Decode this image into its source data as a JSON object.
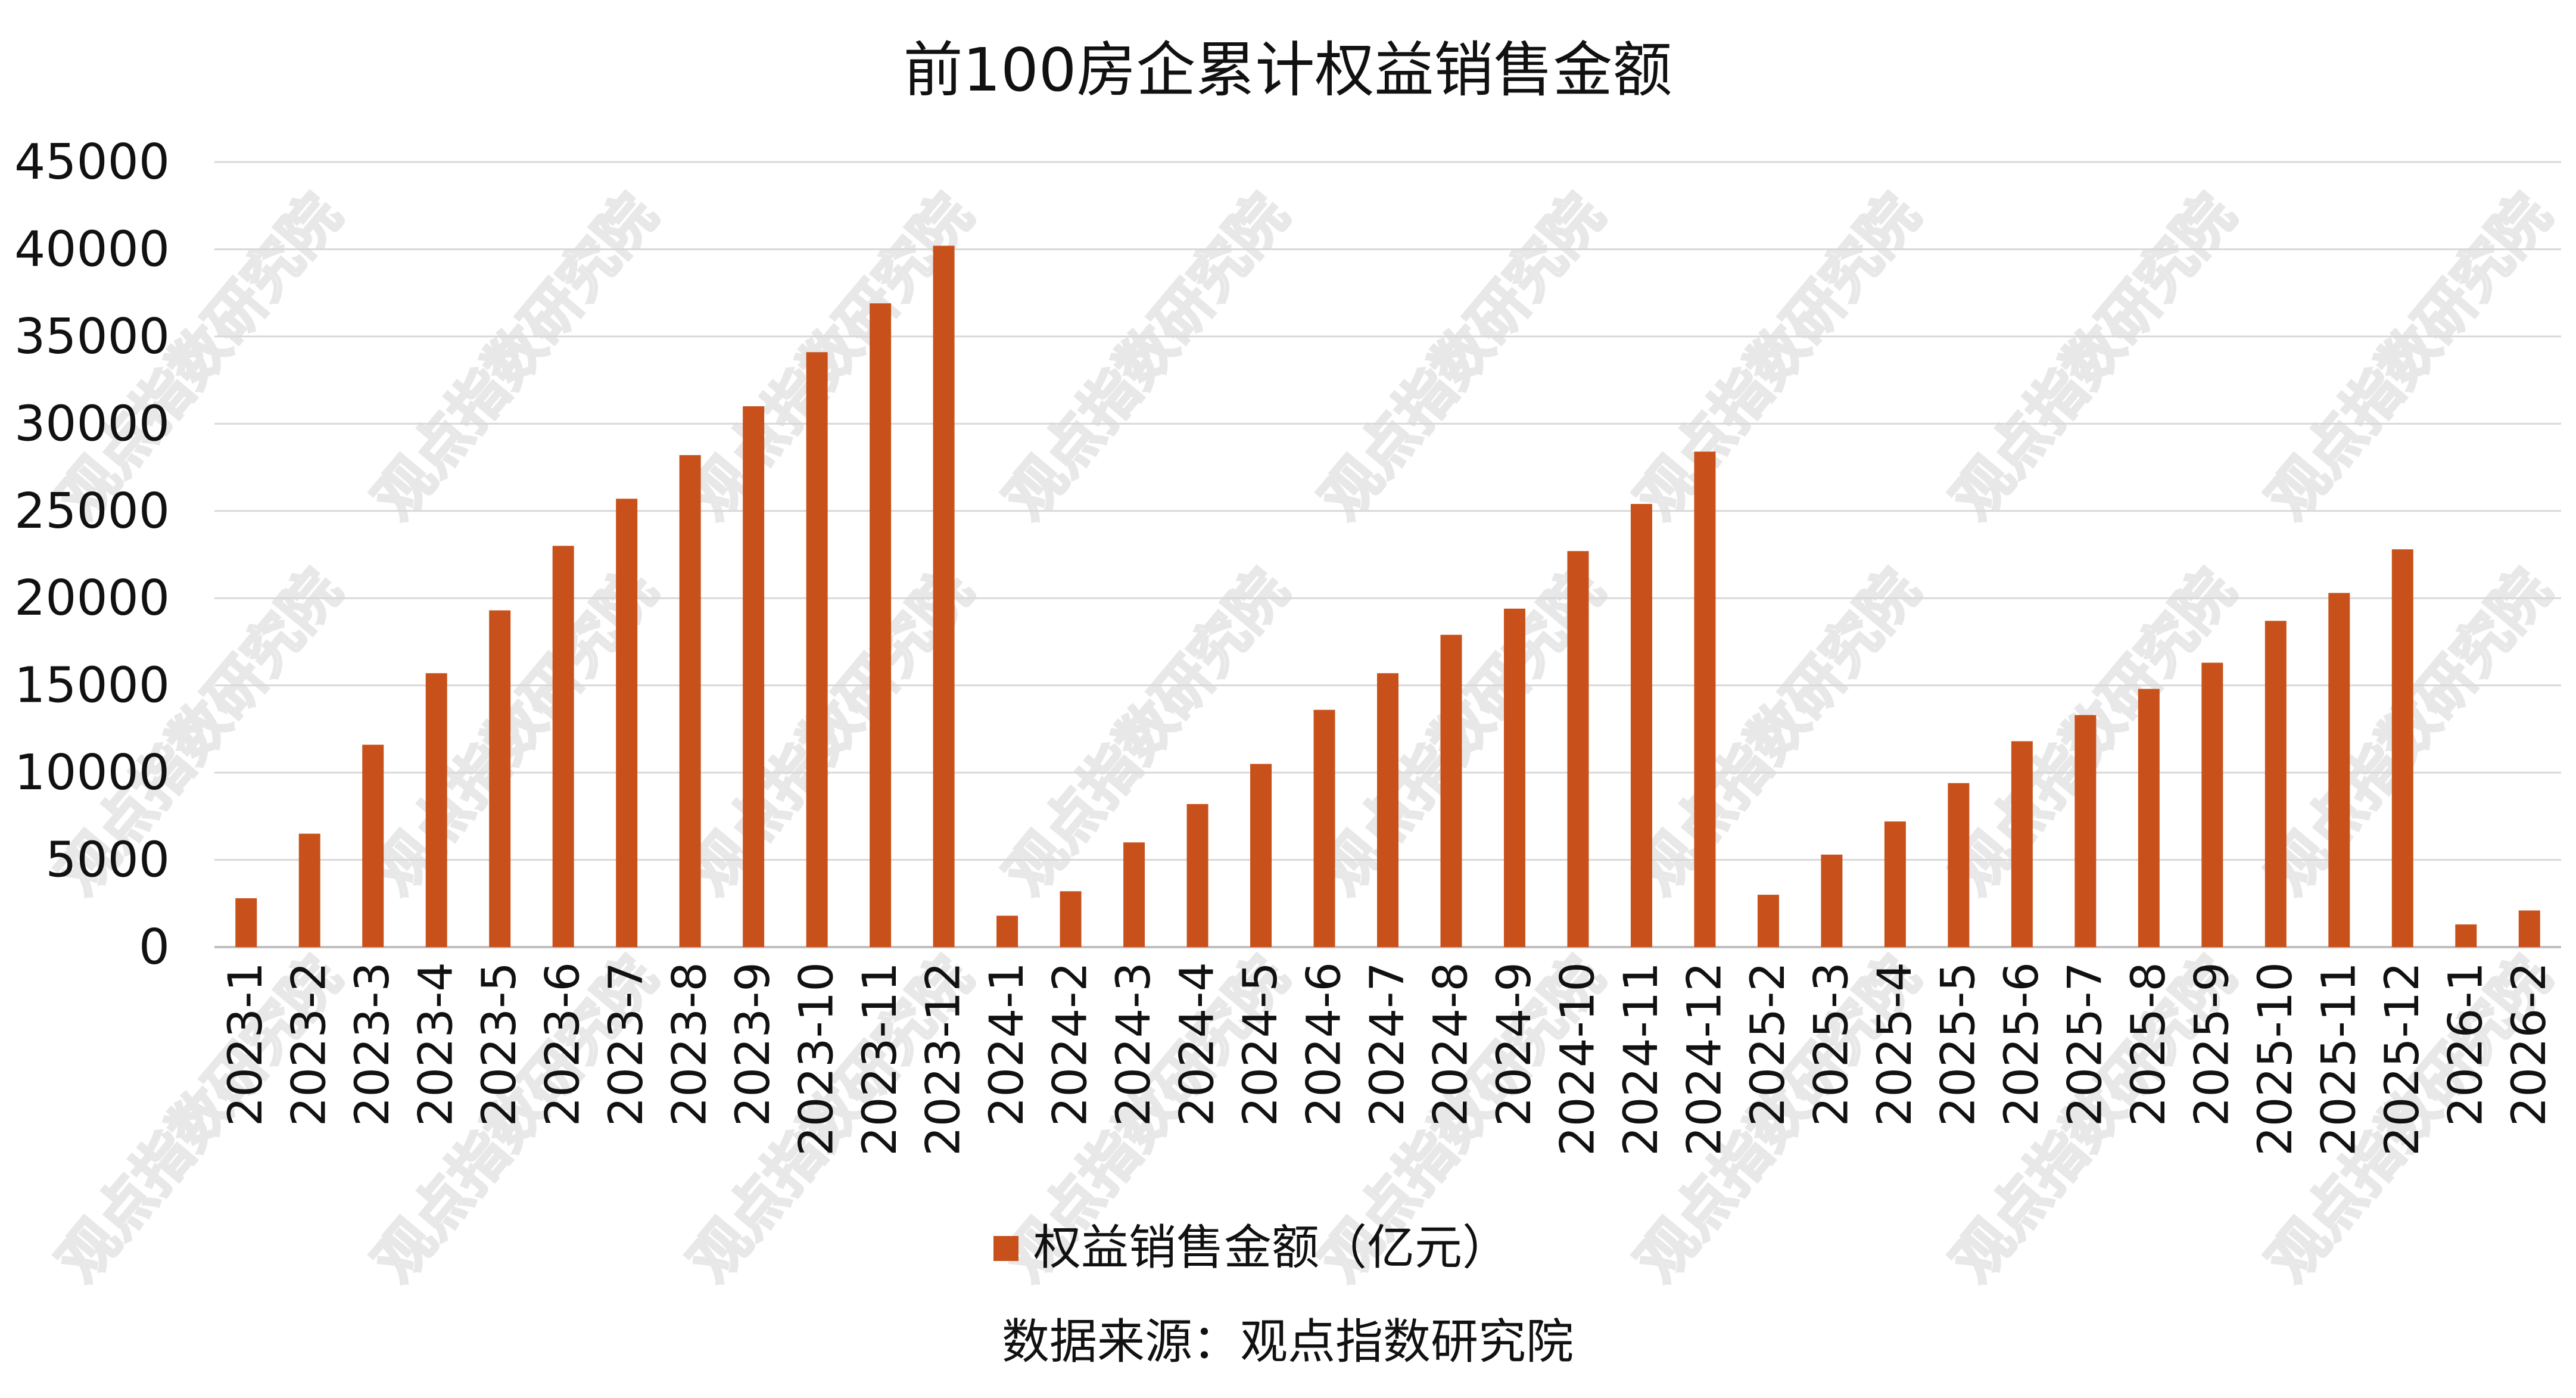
{
  "chart_data": {
    "type": "bar",
    "title": "前100房企累计权益销售金额",
    "categories": [
      "2023-1",
      "2023-2",
      "2023-3",
      "2023-4",
      "2023-5",
      "2023-6",
      "2023-7",
      "2023-8",
      "2023-9",
      "2023-10",
      "2023-11",
      "2023-12",
      "2024-1",
      "2024-2",
      "2024-3",
      "2024-4",
      "2024-5",
      "2024-6",
      "2024-7",
      "2024-8",
      "2024-9",
      "2024-10",
      "2024-11",
      "2024-12",
      "2025-2",
      "2025-3",
      "2025-4",
      "2025-5",
      "2025-6",
      "2025-7",
      "2025-8",
      "2025-9",
      "2025-10",
      "2025-11",
      "2025-12",
      "2026-1",
      "2026-2"
    ],
    "series": [
      {
        "name": "权益销售金额（亿元）",
        "color": "#c8511b",
        "values": [
          2800,
          6500,
          11600,
          15700,
          19300,
          23000,
          25700,
          28200,
          31000,
          34100,
          36900,
          40200,
          1800,
          3200,
          6000,
          8200,
          10500,
          13600,
          15700,
          17900,
          19400,
          22700,
          25400,
          28400,
          3000,
          5300,
          7200,
          9400,
          11800,
          13300,
          14800,
          16300,
          18700,
          20300,
          22800,
          1300,
          2100
        ]
      }
    ],
    "ylim": [
      0,
      45000
    ],
    "yticks": [
      "0",
      "5000",
      "10000",
      "15000",
      "20000",
      "25000",
      "30000",
      "35000",
      "40000",
      "45000"
    ],
    "xlabel": "",
    "ylabel": "",
    "grid": true,
    "legend_position": "bottom",
    "source": "数据来源：观点指数研究院",
    "watermark": "观点指数研究院"
  }
}
